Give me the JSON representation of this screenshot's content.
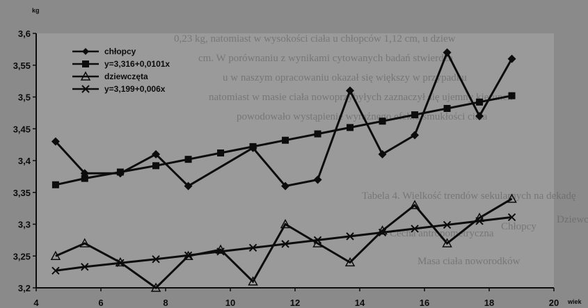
{
  "colors": {
    "paper": "#8a8a8a",
    "plot_area": "#9a9a9a",
    "ink": "#0c0c0c",
    "bleed_text": "#5a5a5a"
  },
  "background_bleed_text": [
    "0,23 kg, natomiast w wysokości ciała u chłopców 1,12 cm, u dziew",
    "cm. W porównaniu z wynikami cytowanych badań stwierdza",
    "u w naszym opracowaniu okazał się większy w przypadku",
    "natomiast w masie ciała nowoprzybyłych zaznaczył się ujemny kierunek",
    "powodowało wystąpienie wyraźnego efektu smukłości ciała",
    "Tabela 4. Wielkość trendów sekularnych na dekadę",
    "Cecha antropometryczna",
    "Chłopcy",
    "Dziewczęta",
    "Masa ciała noworodków"
  ],
  "chart_data": {
    "type": "line",
    "xlabel": "wiek",
    "ylabel": "kg",
    "xlim": [
      4,
      20
    ],
    "ylim": [
      3.2,
      3.6
    ],
    "x_ticks": [
      "4",
      "6",
      "8",
      "10",
      "12",
      "14",
      "16",
      "18",
      "20"
    ],
    "y_ticks": [
      "3,2",
      "3,25",
      "3,3",
      "3,35",
      "3,4",
      "3,45",
      "3,5",
      "3,55",
      "3,6"
    ],
    "grid": false,
    "legend_position": "top-left",
    "series": [
      {
        "name": "chłopcy",
        "marker": "diamond",
        "x": [
          4.6,
          5.5,
          6.6,
          7.7,
          8.7,
          10.7,
          11.7,
          12.7,
          13.7,
          14.7,
          15.7,
          16.7,
          17.7,
          18.7
        ],
        "y": [
          3.43,
          3.38,
          3.38,
          3.41,
          3.36,
          3.42,
          3.36,
          3.37,
          3.51,
          3.41,
          3.44,
          3.57,
          3.47,
          3.56
        ]
      },
      {
        "name": "y=3,316+0,0101x",
        "marker": "square",
        "x": [
          4.6,
          5.5,
          6.6,
          7.7,
          8.7,
          9.7,
          10.7,
          11.7,
          12.7,
          13.7,
          14.7,
          15.7,
          16.7,
          17.7,
          18.7
        ],
        "y": [
          3.362,
          3.372,
          3.382,
          3.392,
          3.402,
          3.412,
          3.422,
          3.432,
          3.442,
          3.452,
          3.462,
          3.472,
          3.482,
          3.492,
          3.502
        ]
      },
      {
        "name": "dziewczęta",
        "marker": "triangle",
        "x": [
          4.6,
          5.5,
          6.6,
          7.7,
          8.7,
          9.7,
          10.7,
          11.7,
          12.7,
          13.7,
          14.7,
          15.7,
          16.7,
          17.7,
          18.7
        ],
        "y": [
          3.25,
          3.27,
          3.24,
          3.2,
          3.25,
          3.26,
          3.21,
          3.3,
          3.27,
          3.24,
          3.29,
          3.33,
          3.27,
          3.31,
          3.34
        ]
      },
      {
        "name": "y=3,199+0,006x",
        "marker": "x",
        "x": [
          4.6,
          5.5,
          6.6,
          7.7,
          8.7,
          9.7,
          10.7,
          11.7,
          12.7,
          13.7,
          14.7,
          15.7,
          16.7,
          17.7,
          18.7
        ],
        "y": [
          3.227,
          3.233,
          3.239,
          3.245,
          3.251,
          3.257,
          3.263,
          3.269,
          3.275,
          3.281,
          3.287,
          3.293,
          3.299,
          3.305,
          3.311
        ]
      }
    ]
  }
}
